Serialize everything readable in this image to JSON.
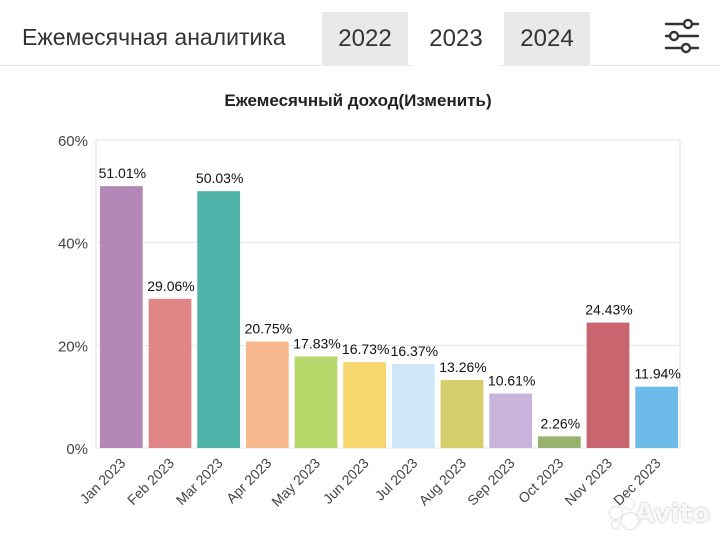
{
  "header": {
    "title": "Ежемесячная аналитика",
    "tabs": [
      {
        "label": "2022",
        "active": false
      },
      {
        "label": "2023",
        "active": true
      },
      {
        "label": "2024",
        "active": false
      }
    ],
    "filter_icon": "sliders-icon"
  },
  "watermark": "Avito",
  "chart_data": {
    "type": "bar",
    "title": "Ежемесячный доход(Изменить)",
    "xlabel": "",
    "ylabel": "",
    "ylim": [
      0,
      60
    ],
    "yticks": [
      "0%",
      "20%",
      "40%",
      "60%"
    ],
    "ytick_values": [
      0,
      20,
      40,
      60
    ],
    "grid": true,
    "categories": [
      "Jan 2023",
      "Feb 2023",
      "Mar 2023",
      "Apr 2023",
      "May 2023",
      "Jun 2023",
      "Jul 2023",
      "Aug 2023",
      "Sep 2023",
      "Oct 2023",
      "Nov 2023",
      "Dec 2023"
    ],
    "values": [
      51.01,
      29.06,
      50.03,
      20.75,
      17.83,
      16.73,
      16.37,
      13.26,
      10.61,
      2.26,
      24.43,
      11.94
    ],
    "labels": [
      "51.01%",
      "29.06%",
      "50.03%",
      "20.75%",
      "17.83%",
      "16.73%",
      "16.37%",
      "13.26%",
      "10.61%",
      "2.26%",
      "24.43%",
      "11.94%"
    ],
    "colors": [
      "#b388b8",
      "#e08585",
      "#4fb3a9",
      "#f9b98e",
      "#b7d86a",
      "#f5d76e",
      "#cfe6fa",
      "#d4cf6a",
      "#c9b3dd",
      "#98b26e",
      "#c9656e",
      "#6cbbe8"
    ]
  }
}
